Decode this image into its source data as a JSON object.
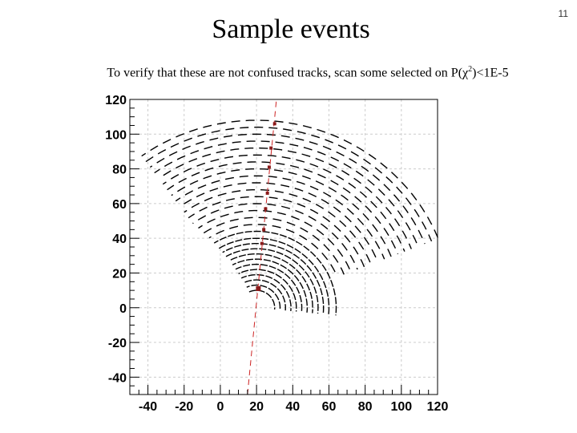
{
  "slide": {
    "number": "11",
    "title": "Sample events",
    "subtitle": "To verify that these are not confused tracks, scan some selected on P(χ2)<1E-5",
    "subtitle_prefix": "To verify that these are not confused tracks, scan some selected on P(χ",
    "subtitle_sup": "2",
    "subtitle_suffix": ")<1E-5"
  },
  "colors": {
    "track_line": "#cc2222",
    "frame": "#000000",
    "grid": "#cccccc",
    "hits": "#000000"
  },
  "chart_data": {
    "type": "scatter",
    "title": "",
    "xlabel": "",
    "ylabel": "",
    "xlim": [
      -50,
      120
    ],
    "ylim": [
      -50,
      120
    ],
    "xticks": [
      -40,
      -20,
      0,
      20,
      40,
      60,
      80,
      100,
      120
    ],
    "yticks": [
      120,
      100,
      80,
      60,
      40,
      20,
      0,
      -20,
      -40
    ],
    "grid": true,
    "reference_lines": [
      {
        "orientation": "vertical",
        "x": 120,
        "style": "solid"
      }
    ],
    "track_fit": {
      "style": "dashed",
      "from": [
        15,
        -50
      ],
      "to": [
        31,
        120
      ]
    },
    "track_points": [
      {
        "x": 21,
        "y": 11
      },
      {
        "x": 23,
        "y": 37
      },
      {
        "x": 24,
        "y": 45
      },
      {
        "x": 25,
        "y": 57
      },
      {
        "x": 26,
        "y": 66
      },
      {
        "x": 27,
        "y": 81
      },
      {
        "x": 28,
        "y": 92
      },
      {
        "x": 30,
        "y": 106
      }
    ],
    "hit_arcs": {
      "center": [
        20,
        0
      ],
      "radii": [
        10,
        13,
        16,
        19,
        22,
        25,
        28,
        31,
        34,
        37,
        40,
        44,
        48,
        52,
        56,
        60,
        64,
        68,
        72,
        76,
        80,
        84,
        88,
        92,
        96,
        100,
        104,
        108
      ]
    }
  }
}
